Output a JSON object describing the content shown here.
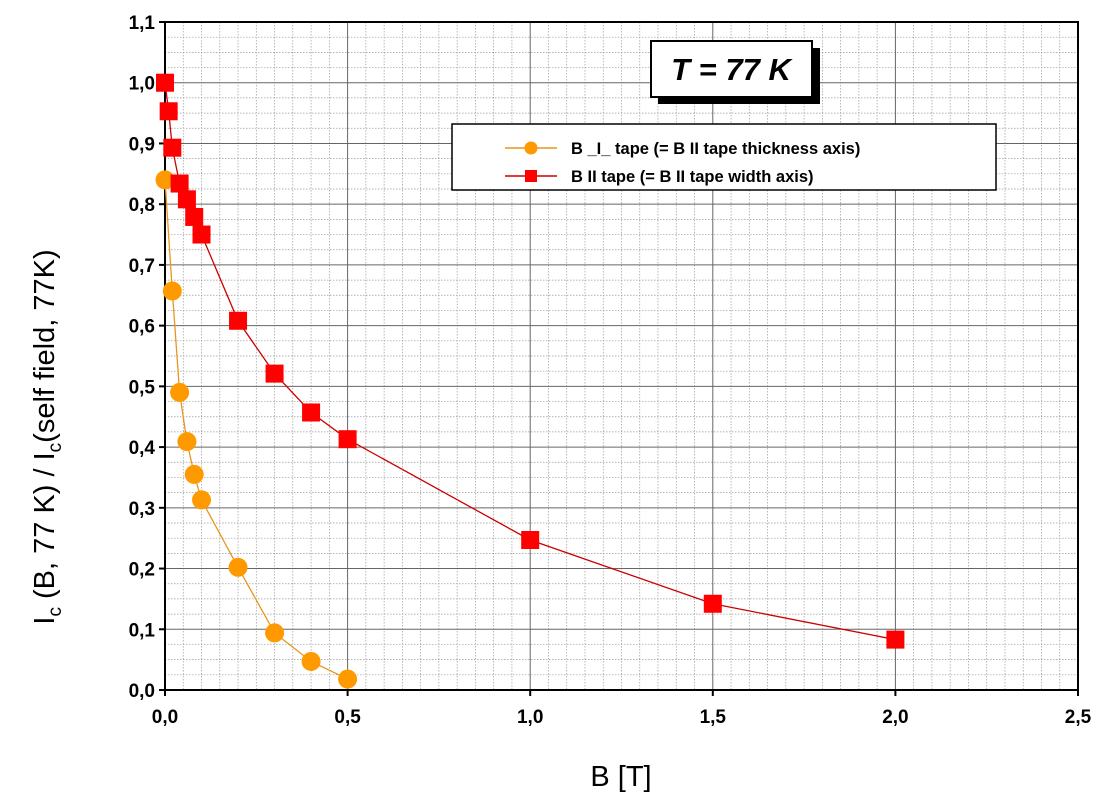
{
  "chart_data": {
    "type": "scatter",
    "title": "",
    "xlabel": "B [T]",
    "ylabel_parts": {
      "part1": "I",
      "sub1": "c",
      "part2": " (B, 77 K) / I",
      "sub2": "c",
      "part3": "(self field, 77K)"
    },
    "xlim": [
      0,
      2.5
    ],
    "ylim": [
      0,
      1.1
    ],
    "x_ticks": [
      0,
      0.5,
      1.0,
      1.5,
      2.0,
      2.5
    ],
    "x_tick_labels": [
      "0,0",
      "0,5",
      "1,0",
      "1,5",
      "2,0",
      "2,5"
    ],
    "y_ticks": [
      0,
      0.1,
      0.2,
      0.3,
      0.4,
      0.5,
      0.6,
      0.7,
      0.8,
      0.9,
      1.0,
      1.1
    ],
    "y_tick_labels": [
      "0,0",
      "0,1",
      "0,2",
      "0,3",
      "0,4",
      "0,5",
      "0,6",
      "0,7",
      "0,8",
      "0,9",
      "1,0",
      "1,1"
    ],
    "grid": true,
    "legend_position": "upper-right",
    "annotation": "T = 77 K",
    "series": [
      {
        "name": "B _I_ tape (= B II tape thickness axis)",
        "marker": "circle",
        "color": "#ff9900",
        "line_color": "#e8961e",
        "x": [
          0.0,
          0.02,
          0.04,
          0.06,
          0.08,
          0.1,
          0.2,
          0.3,
          0.4,
          0.5
        ],
        "y": [
          0.84,
          0.657,
          0.49,
          0.409,
          0.355,
          0.313,
          0.202,
          0.094,
          0.047,
          0.018
        ]
      },
      {
        "name": "B  II  tape (= B II tape width axis)",
        "marker": "square",
        "color": "#ff0000",
        "line_color": "#cc0000",
        "x": [
          0.0,
          0.01,
          0.02,
          0.04,
          0.06,
          0.08,
          0.1,
          0.2,
          0.3,
          0.4,
          0.5,
          1.0,
          1.5,
          2.0
        ],
        "y": [
          1.0,
          0.953,
          0.893,
          0.834,
          0.808,
          0.779,
          0.75,
          0.608,
          0.521,
          0.457,
          0.413,
          0.247,
          0.142,
          0.083
        ]
      }
    ]
  }
}
